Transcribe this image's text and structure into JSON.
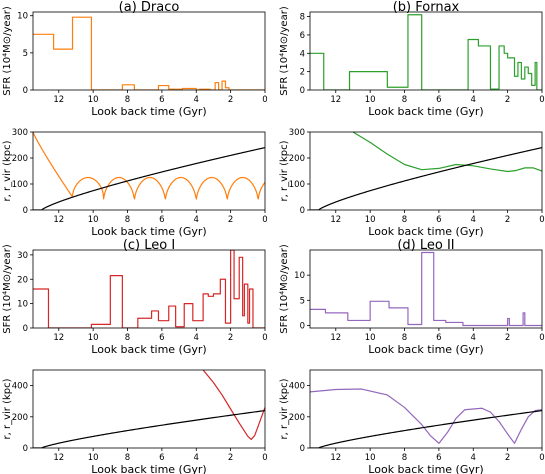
{
  "chart_data": [
    {
      "type": "line",
      "panel": "draco-sfr",
      "title": "(a) Draco",
      "xlabel": "Look back time (Gyr)",
      "ylabel": "SFR (10⁴M⊙/year)",
      "xlim": [
        13.5,
        0
      ],
      "ylim": [
        0,
        10.5
      ],
      "xticks": [
        12,
        10,
        8,
        6,
        4,
        2,
        0
      ],
      "yticks": [
        0,
        5,
        10
      ],
      "series": [
        {
          "color": "#ff7f0e",
          "step": true,
          "x": [
            13.5,
            12.3,
            11.2,
            10.1,
            8.3,
            7.6,
            6.2,
            5.6,
            4.8,
            4.0,
            3.8,
            3.2,
            2.9,
            2.7,
            2.5,
            2.3,
            2.1,
            1.9,
            0.0
          ],
          "y": [
            7.5,
            5.5,
            9.8,
            0.0,
            0.7,
            0.0,
            0.6,
            0.1,
            0.2,
            0.0,
            0.1,
            0.0,
            1.0,
            0.0,
            1.2,
            0.3,
            0.0,
            0.0,
            0.0
          ]
        }
      ]
    },
    {
      "type": "line",
      "panel": "draco-orbit",
      "xlabel": "Look back time (Gyr)",
      "ylabel": "r, r_vir (kpc)",
      "xlim": [
        13.5,
        0
      ],
      "ylim": [
        0,
        300
      ],
      "xticks": [
        12,
        10,
        8,
        6,
        4,
        2,
        0
      ],
      "yticks": [
        0,
        100,
        200,
        300
      ],
      "series": [
        {
          "color": "#ff7f0e",
          "curve": "orbit",
          "start": [
            13.5,
            300
          ],
          "min1": [
            11.2,
            50
          ],
          "apo": 125,
          "peri": 30,
          "period": 1.8
        },
        {
          "color": "#000000",
          "curve": "rvir",
          "r0": 0,
          "t0": 13.0,
          "rend": 240
        }
      ]
    },
    {
      "type": "line",
      "panel": "fornax-sfr",
      "title": "(b) Fornax",
      "xlabel": "Look back time (Gyr)",
      "ylabel": "SFR (10⁴M⊙/year)",
      "xlim": [
        13.5,
        0
      ],
      "ylim": [
        0,
        8.5
      ],
      "xticks": [
        12,
        10,
        8,
        6,
        4,
        2,
        0
      ],
      "yticks": [
        0,
        2,
        4,
        6,
        8
      ],
      "series": [
        {
          "color": "#2ca02c",
          "step": true,
          "x": [
            13.5,
            12.7,
            11.2,
            9.0,
            7.8,
            7.0,
            4.3,
            3.7,
            3.0,
            2.5,
            2.2,
            2.0,
            1.6,
            1.4,
            1.2,
            1.0,
            0.8,
            0.6,
            0.4,
            0.3,
            0.0
          ],
          "y": [
            4.0,
            0.0,
            2.0,
            0.3,
            8.2,
            0.0,
            5.5,
            4.8,
            0.1,
            4.8,
            4.0,
            3.5,
            1.5,
            3.0,
            1.2,
            2.5,
            1.8,
            0.5,
            3.0,
            0.0,
            0.0
          ]
        }
      ]
    },
    {
      "type": "line",
      "panel": "fornax-orbit",
      "xlabel": "Look back time (Gyr)",
      "ylabel": "r, r_vir (kpc)",
      "xlim": [
        13.5,
        0
      ],
      "ylim": [
        0,
        300
      ],
      "xticks": [
        12,
        10,
        8,
        6,
        4,
        2,
        0
      ],
      "yticks": [
        0,
        100,
        200,
        300
      ],
      "series": [
        {
          "color": "#2ca02c",
          "curve": "points",
          "x": [
            11.0,
            10.0,
            9.0,
            8.0,
            7.0,
            6.0,
            5.0,
            4.0,
            3.0,
            2.0,
            1.5,
            1.0,
            0.5,
            0.0
          ],
          "y": [
            300,
            260,
            215,
            175,
            155,
            160,
            175,
            170,
            158,
            148,
            152,
            162,
            162,
            150
          ]
        },
        {
          "color": "#000000",
          "curve": "rvir",
          "r0": 0,
          "t0": 13.0,
          "rend": 240
        }
      ]
    },
    {
      "type": "line",
      "panel": "leoi-sfr",
      "title": "(c) Leo I",
      "xlabel": "Look back time (Gyr)",
      "ylabel": "SFR (10⁴M⊙/year)",
      "xlim": [
        13.5,
        0
      ],
      "ylim": [
        0,
        32
      ],
      "xticks": [
        12,
        10,
        8,
        6,
        4,
        2,
        0
      ],
      "yticks": [
        0,
        10,
        20,
        30
      ],
      "series": [
        {
          "color": "#d62728",
          "step": true,
          "x": [
            13.5,
            12.6,
            10.1,
            9.0,
            8.3,
            7.4,
            6.6,
            6.2,
            5.6,
            5.2,
            4.7,
            4.2,
            3.6,
            3.3,
            3.0,
            2.6,
            2.3,
            2.0,
            1.8,
            1.5,
            1.3,
            1.2,
            1.0,
            0.9,
            0.7,
            0.0
          ],
          "y": [
            16.0,
            0.0,
            1.5,
            21.5,
            0.0,
            4.0,
            7.0,
            3.0,
            9.0,
            0.5,
            10.0,
            3.0,
            14.0,
            13.0,
            14.0,
            20.0,
            2.0,
            32.0,
            12.0,
            29.0,
            5.0,
            18.0,
            2.0,
            16.0,
            0.0,
            0.0
          ]
        }
      ]
    },
    {
      "type": "line",
      "panel": "leoi-orbit",
      "xlabel": "Look back time (Gyr)",
      "ylabel": "r, r_vir (kpc)",
      "xlim": [
        13.5,
        0
      ],
      "ylim": [
        0,
        500
      ],
      "xticks": [
        12,
        10,
        8,
        6,
        4,
        2,
        0
      ],
      "yticks": [
        0,
        200,
        400
      ],
      "series": [
        {
          "color": "#d62728",
          "curve": "points",
          "x": [
            3.6,
            3.0,
            2.5,
            2.0,
            1.5,
            1.0,
            0.8,
            0.6,
            0.4,
            0.2,
            0.0
          ],
          "y": [
            500,
            420,
            340,
            250,
            160,
            75,
            55,
            80,
            140,
            200,
            260
          ]
        },
        {
          "color": "#000000",
          "curve": "rvir",
          "r0": 0,
          "t0": 13.0,
          "rend": 240
        }
      ]
    },
    {
      "type": "line",
      "panel": "leoii-sfr",
      "title": "(d) Leo II",
      "xlabel": "Look back time (Gyr)",
      "ylabel": "SFR (10⁴M⊙/year)",
      "xlim": [
        13.5,
        0
      ],
      "ylim": [
        -0.5,
        15
      ],
      "xticks": [
        12,
        10,
        8,
        6,
        4,
        2,
        0
      ],
      "yticks": [
        0,
        5,
        10
      ],
      "series": [
        {
          "color": "#9467bd",
          "step": true,
          "x": [
            13.5,
            12.6,
            11.3,
            10.0,
            8.9,
            7.8,
            7.0,
            6.3,
            5.6,
            4.6,
            2.0,
            1.9,
            1.1,
            1.0,
            0.0
          ],
          "y": [
            3.2,
            2.5,
            1.0,
            4.8,
            3.5,
            0.2,
            14.5,
            1.0,
            0.6,
            0.0,
            1.4,
            0.0,
            2.5,
            0.0,
            0.0
          ]
        }
      ]
    },
    {
      "type": "line",
      "panel": "leoii-orbit",
      "xlabel": "Look back time (Gyr)",
      "ylabel": "r, r_vir (kpc)",
      "xlim": [
        13.5,
        0
      ],
      "ylim": [
        0,
        500
      ],
      "xticks": [
        12,
        10,
        8,
        6,
        4,
        2,
        0
      ],
      "yticks": [
        0,
        200,
        400
      ],
      "series": [
        {
          "color": "#9467bd",
          "curve": "points",
          "x": [
            13.5,
            12.0,
            10.5,
            9.0,
            8.0,
            7.0,
            6.5,
            6.0,
            5.5,
            5.0,
            4.5,
            3.5,
            3.0,
            2.5,
            2.0,
            1.6,
            1.2,
            0.8,
            0.4,
            0.0
          ],
          "y": [
            360,
            375,
            378,
            340,
            260,
            150,
            80,
            30,
            100,
            190,
            245,
            255,
            230,
            170,
            90,
            30,
            120,
            200,
            240,
            245
          ]
        },
        {
          "color": "#000000",
          "curve": "rvir",
          "r0": 0,
          "t0": 13.0,
          "rend": 240
        }
      ]
    }
  ]
}
